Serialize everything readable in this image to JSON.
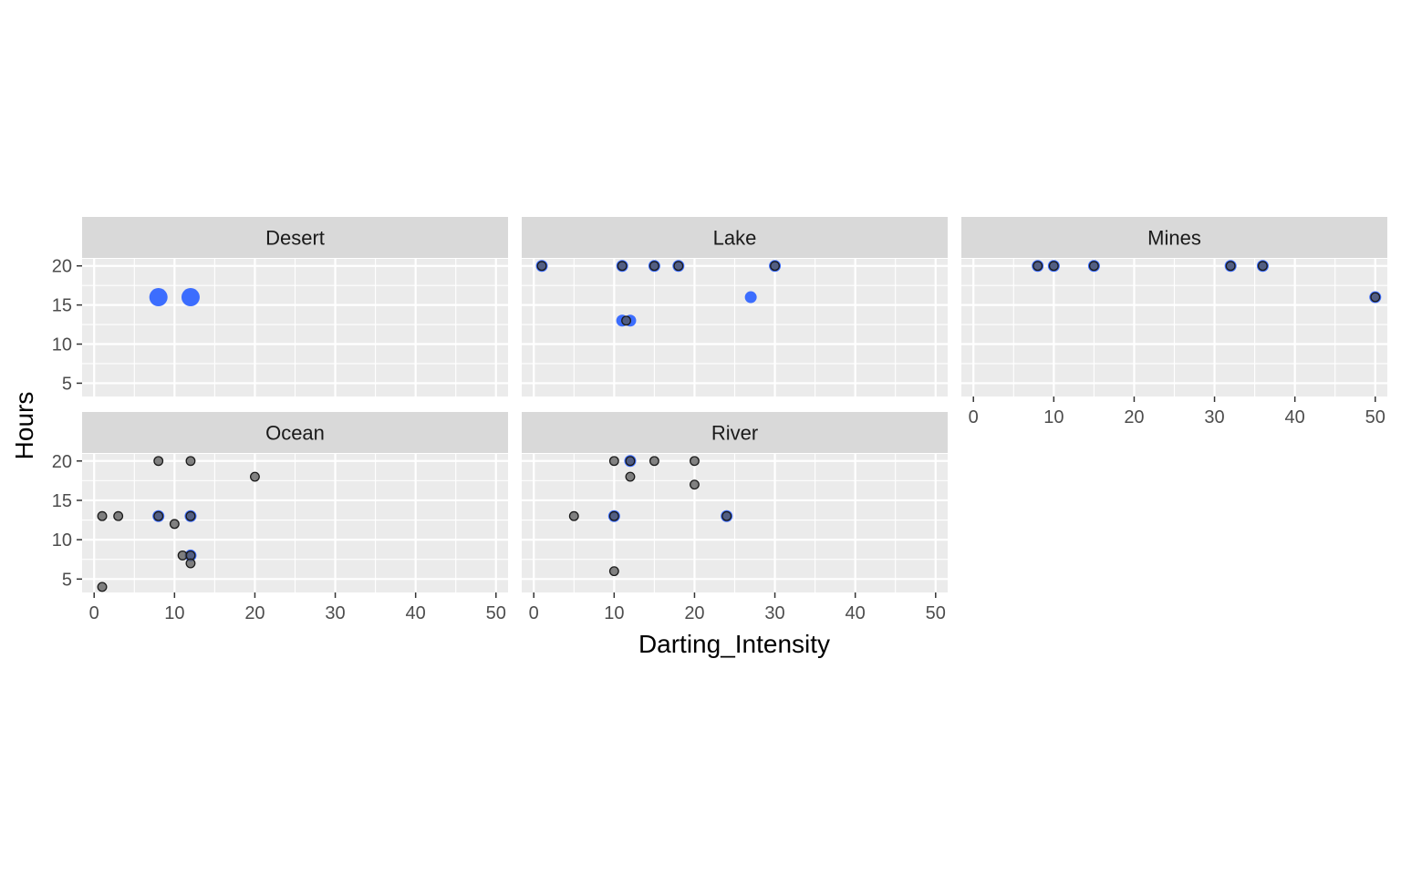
{
  "chart_data": {
    "type": "scatter",
    "xlabel": "Darting_Intensity",
    "ylabel": "Hours",
    "xlim": [
      -1.5,
      51.5
    ],
    "ylim": [
      3.3,
      20.9
    ],
    "x_ticks": [
      0,
      10,
      20,
      30,
      40,
      50
    ],
    "y_ticks": [
      5,
      10,
      15,
      20
    ],
    "grid": true,
    "facets": [
      {
        "name": "Desert",
        "black_points": [],
        "blue_points": [
          {
            "x": 8,
            "y": 16,
            "size": "large"
          },
          {
            "x": 12,
            "y": 16,
            "size": "large"
          }
        ]
      },
      {
        "name": "Lake",
        "black_points": [
          {
            "x": 1,
            "y": 20
          },
          {
            "x": 11,
            "y": 20
          },
          {
            "x": 15,
            "y": 20
          },
          {
            "x": 18,
            "y": 20
          },
          {
            "x": 30,
            "y": 20
          },
          {
            "x": 11.5,
            "y": 13
          }
        ],
        "blue_points": [
          {
            "x": 1,
            "y": 20
          },
          {
            "x": 11,
            "y": 20
          },
          {
            "x": 15,
            "y": 20
          },
          {
            "x": 18,
            "y": 20
          },
          {
            "x": 30,
            "y": 20
          },
          {
            "x": 27,
            "y": 16
          },
          {
            "x": 11,
            "y": 13
          },
          {
            "x": 12,
            "y": 13
          }
        ]
      },
      {
        "name": "Mines",
        "black_points": [
          {
            "x": 8,
            "y": 20
          },
          {
            "x": 10,
            "y": 20
          },
          {
            "x": 15,
            "y": 20
          },
          {
            "x": 32,
            "y": 20
          },
          {
            "x": 36,
            "y": 20
          },
          {
            "x": 50,
            "y": 16
          }
        ],
        "blue_points": [
          {
            "x": 8,
            "y": 20
          },
          {
            "x": 10,
            "y": 20
          },
          {
            "x": 15,
            "y": 20
          },
          {
            "x": 32,
            "y": 20
          },
          {
            "x": 36,
            "y": 20
          },
          {
            "x": 50,
            "y": 16
          }
        ]
      },
      {
        "name": "Ocean",
        "black_points": [
          {
            "x": 8,
            "y": 20
          },
          {
            "x": 12,
            "y": 20
          },
          {
            "x": 20,
            "y": 18
          },
          {
            "x": 1,
            "y": 13
          },
          {
            "x": 3,
            "y": 13
          },
          {
            "x": 8,
            "y": 13
          },
          {
            "x": 12,
            "y": 13
          },
          {
            "x": 10,
            "y": 12
          },
          {
            "x": 11,
            "y": 8
          },
          {
            "x": 12,
            "y": 8
          },
          {
            "x": 12,
            "y": 7
          },
          {
            "x": 1,
            "y": 4
          }
        ],
        "blue_points": [
          {
            "x": 8,
            "y": 13
          },
          {
            "x": 12,
            "y": 13
          },
          {
            "x": 12,
            "y": 8
          }
        ]
      },
      {
        "name": "River",
        "black_points": [
          {
            "x": 10,
            "y": 20
          },
          {
            "x": 12,
            "y": 20
          },
          {
            "x": 15,
            "y": 20
          },
          {
            "x": 20,
            "y": 20
          },
          {
            "x": 12,
            "y": 18
          },
          {
            "x": 20,
            "y": 17
          },
          {
            "x": 5,
            "y": 13
          },
          {
            "x": 10,
            "y": 13
          },
          {
            "x": 24,
            "y": 13
          },
          {
            "x": 10,
            "y": 6
          }
        ],
        "blue_points": [
          {
            "x": 12,
            "y": 20
          },
          {
            "x": 10,
            "y": 13
          },
          {
            "x": 24,
            "y": 13
          }
        ]
      }
    ],
    "colors": {
      "panel_bg": "#ebebeb",
      "strip_bg": "#d9d9d9",
      "grid": "#ffffff",
      "tick": "#333333",
      "black_point_fill": "#595959",
      "black_point_stroke": "#1a1a1a",
      "blue_point": "#3366ff"
    }
  }
}
